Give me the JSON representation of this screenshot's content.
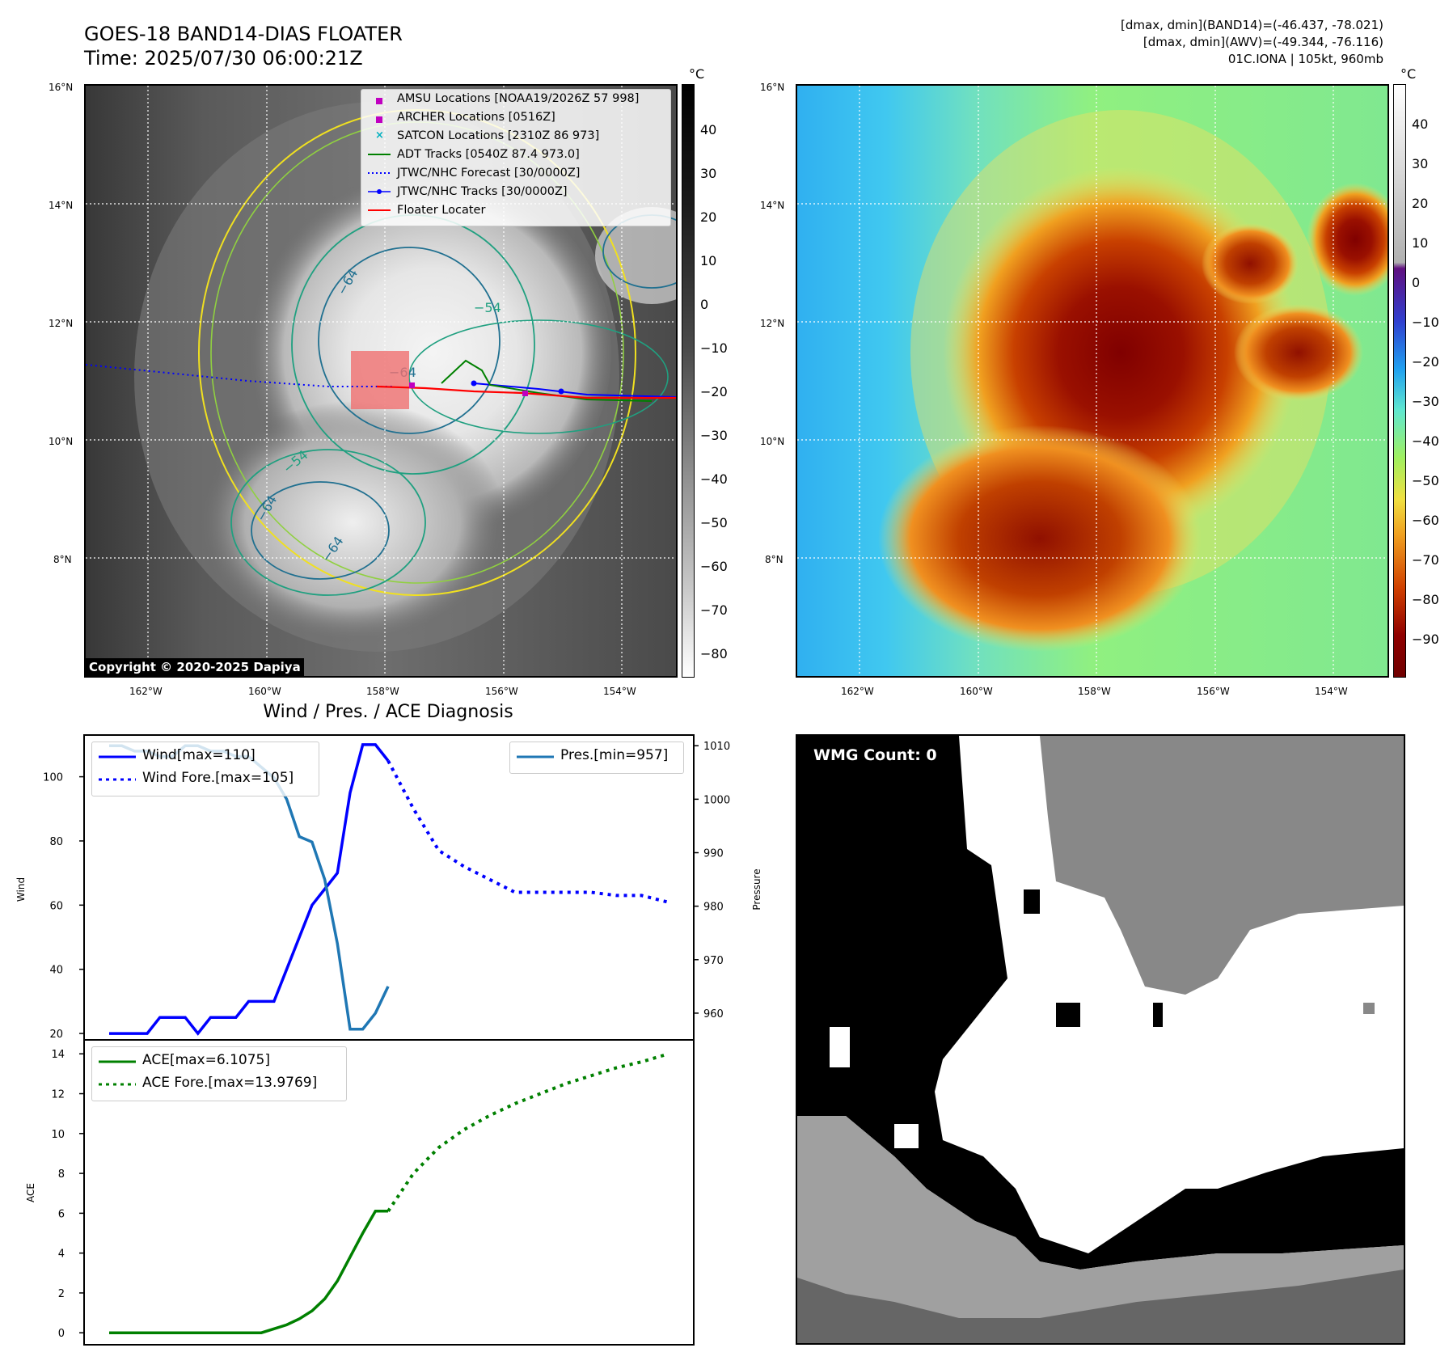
{
  "header": {
    "title": "GOES-18 BAND14-DIAS FLOATER",
    "time": "Time: 2025/07/30 06:00:21Z",
    "stats_band14": "[dmax, dmin](BAND14)=(-46.437, -78.021)",
    "stats_awv": "[dmax, dmin](AWV)=(-49.344, -76.116)",
    "storm": "01C.IONA | 105kt, 960mb"
  },
  "map_left": {
    "copyright": "Copyright © 2020-2025 Dapiya",
    "colorbar_unit": "°C",
    "colorbar_ticks": [
      "40",
      "30",
      "20",
      "10",
      "0",
      "−10",
      "−20",
      "−30",
      "−40",
      "−50",
      "−60",
      "−70",
      "−80"
    ],
    "lat_labels": [
      "16°N",
      "14°N",
      "12°N",
      "10°N",
      "8°N"
    ],
    "lon_labels": [
      "162°W",
      "160°W",
      "158°W",
      "156°W",
      "154°W"
    ],
    "contour_labels": [
      "−64",
      "−54",
      "−64",
      "−64",
      "−54",
      "−64"
    ],
    "legend": [
      {
        "label": "AMSU Locations [NOAA19/2026Z 57 998]",
        "marker": "square",
        "color": "#c000c0"
      },
      {
        "label": "ARCHER Locations [0516Z]",
        "marker": "square",
        "color": "#c000c0"
      },
      {
        "label": "SATCON Locations [2310Z 86 973]",
        "marker": "x",
        "color": "#00b0c0"
      },
      {
        "label": "ADT Tracks [0540Z 87.4 973.0]",
        "marker": "line",
        "color": "#008000"
      },
      {
        "label": "JTWC/NHC Forecast [30/0000Z]",
        "marker": "dotted",
        "color": "#0000ff"
      },
      {
        "label": "JTWC/NHC Tracks [30/0000Z]",
        "marker": "line-dot",
        "color": "#0000ff"
      },
      {
        "label": "Floater Locater",
        "marker": "line",
        "color": "#ff0000"
      }
    ]
  },
  "map_right": {
    "colorbar_unit": "°C",
    "colorbar_ticks": [
      "40",
      "30",
      "20",
      "10",
      "0",
      "−10",
      "−20",
      "−30",
      "−40",
      "−50",
      "−60",
      "−70",
      "−80",
      "−90"
    ],
    "lat_labels": [
      "16°N",
      "14°N",
      "12°N",
      "10°N",
      "8°N"
    ],
    "lon_labels": [
      "162°W",
      "160°W",
      "158°W",
      "156°W",
      "154°W"
    ]
  },
  "diagnosis": {
    "title": "Wind / Pres. / ACE Diagnosis",
    "wind_ylabel": "Wind",
    "pres_ylabel": "Pressure",
    "ace_ylabel": "ACE",
    "legend_wind": "Wind[max=110]",
    "legend_wind_fore": "Wind Fore.[max=105]",
    "legend_pres": "Pres.[min=957]",
    "legend_ace": "ACE[max=6.1075]",
    "legend_ace_fore": "ACE Fore.[max=13.9769]"
  },
  "wmg": {
    "label": "WMG Count: 0"
  },
  "chart_data": [
    {
      "type": "line",
      "name": "wind-pressure",
      "ylim_left": [
        18,
        113
      ],
      "yticks_left": [
        20,
        40,
        60,
        80,
        100
      ],
      "ylim_right": [
        955,
        1012
      ],
      "yticks_right": [
        960,
        970,
        980,
        990,
        1000,
        1010
      ],
      "series": [
        {
          "name": "Wind[max=110]",
          "axis": "left",
          "color": "#0000ff",
          "style": "solid",
          "x": [
            0,
            1,
            2,
            3,
            4,
            5,
            6,
            7,
            8,
            9,
            10,
            11,
            12,
            13,
            14,
            15,
            16,
            17,
            18,
            19,
            20,
            21,
            22
          ],
          "values": [
            20,
            20,
            20,
            20,
            25,
            25,
            25,
            20,
            25,
            25,
            25,
            30,
            30,
            30,
            40,
            50,
            60,
            65,
            70,
            95,
            110,
            110,
            105
          ]
        },
        {
          "name": "Wind Fore.[max=105]",
          "axis": "left",
          "color": "#0000ff",
          "style": "dotted",
          "x": [
            22,
            24,
            26,
            28,
            30,
            32,
            34,
            36,
            38,
            40,
            42,
            44
          ],
          "values": [
            105,
            90,
            77,
            72,
            68,
            64,
            64,
            64,
            64,
            63,
            63,
            61
          ]
        },
        {
          "name": "Pres.[min=957]",
          "axis": "right",
          "color": "#1f77b4",
          "style": "solid",
          "x": [
            0,
            1,
            2,
            3,
            4,
            5,
            6,
            7,
            8,
            9,
            10,
            11,
            12,
            13,
            14,
            15,
            16,
            17,
            18,
            19,
            20,
            21,
            22
          ],
          "values": [
            1010,
            1010,
            1009,
            1009,
            1008,
            1008,
            1010,
            1010,
            1009,
            1009,
            1008,
            1008,
            1006,
            1004,
            1000,
            993,
            992,
            985,
            973,
            957,
            957,
            960,
            965
          ]
        }
      ]
    },
    {
      "type": "line",
      "name": "ace",
      "ylim": [
        -0.6,
        14.7
      ],
      "yticks": [
        0,
        2,
        4,
        6,
        8,
        10,
        12,
        14
      ],
      "series": [
        {
          "name": "ACE[max=6.1075]",
          "color": "#008000",
          "style": "solid",
          "x": [
            0,
            1,
            2,
            3,
            4,
            5,
            6,
            7,
            8,
            9,
            10,
            11,
            12,
            13,
            14,
            15,
            16,
            17,
            18,
            19,
            20,
            21,
            22
          ],
          "values": [
            0,
            0,
            0,
            0,
            0,
            0,
            0,
            0,
            0,
            0,
            0,
            0,
            0,
            0.2,
            0.4,
            0.7,
            1.1,
            1.7,
            2.6,
            3.8,
            5.0,
            6.1075,
            6.1075
          ]
        },
        {
          "name": "ACE Fore.[max=13.9769]",
          "color": "#008000",
          "style": "dotted",
          "x": [
            22,
            24,
            26,
            28,
            30,
            32,
            34,
            36,
            38,
            40,
            42,
            44
          ],
          "values": [
            6.1,
            8.0,
            9.3,
            10.2,
            10.9,
            11.5,
            12.0,
            12.5,
            12.9,
            13.3,
            13.6,
            13.9769
          ]
        }
      ]
    }
  ]
}
